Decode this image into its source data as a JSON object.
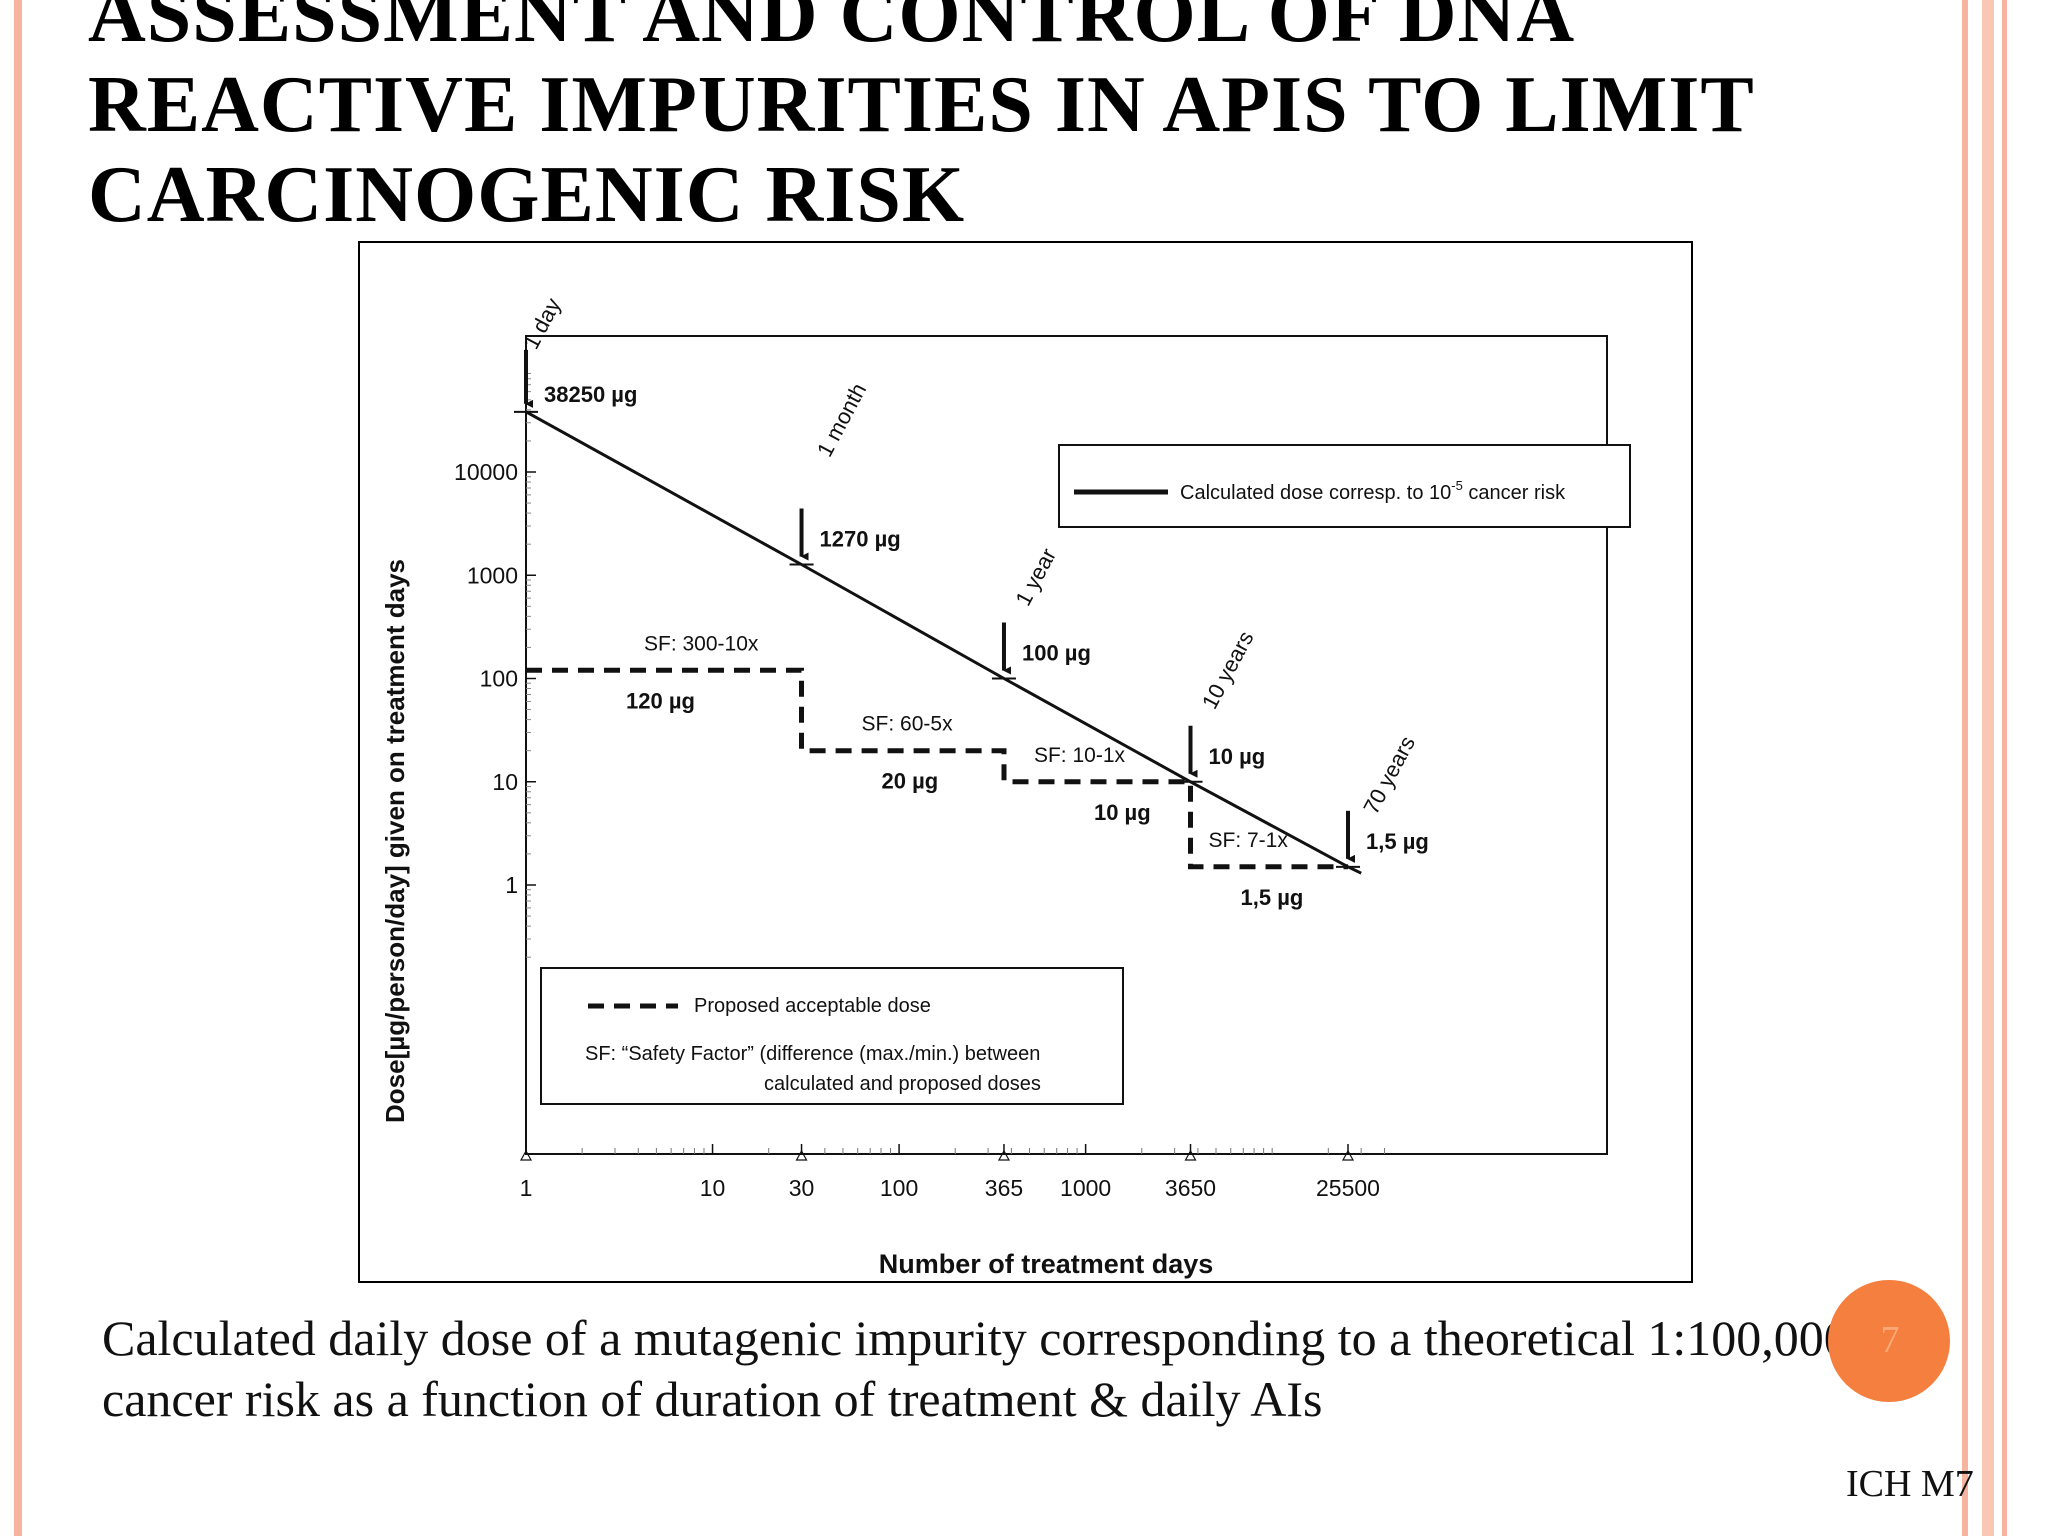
{
  "slide": {
    "title": "ASSESSMENT AND CONTROL OF DNA REACTIVE IMPURITIES IN APIS TO LIMIT CARCINOGENIC RISK",
    "caption": "Calculated daily dose of a mutagenic impurity corresponding to a theoretical 1:100,000 cancer risk as a function of duration of treatment & daily AIs",
    "page_number": "7",
    "source": "ICH M7",
    "colors": {
      "stripe": "#f6b39f",
      "badge": "#f47f3f"
    }
  },
  "chart_data": {
    "type": "line",
    "xscale": "log",
    "yscale": "log",
    "xlabel": "Number of treatment days",
    "ylabel": "Dose[µg/person/day]  given on treatment days",
    "xlim": [
      1,
      50000
    ],
    "ylim": [
      0.1,
      100000
    ],
    "x_ticks": [
      {
        "value": 1,
        "label": "1"
      },
      {
        "value": 10,
        "label": "10"
      },
      {
        "value": 30,
        "label": "30"
      },
      {
        "value": 100,
        "label": "100"
      },
      {
        "value": 365,
        "label": "365"
      },
      {
        "value": 1000,
        "label": "1000"
      },
      {
        "value": 3650,
        "label": "3650"
      },
      {
        "value": 25500,
        "label": "25500"
      }
    ],
    "y_ticks": [
      {
        "value": 1,
        "label": "1"
      },
      {
        "value": 10,
        "label": "10"
      },
      {
        "value": 100,
        "label": "100"
      },
      {
        "value": 1000,
        "label": "1000"
      },
      {
        "value": 10000,
        "label": "10000"
      }
    ],
    "series": [
      {
        "name": "Calculated dose corresp. to 10-5 cancer risk",
        "style": "solid",
        "points": [
          {
            "x": 1,
            "y": 38250
          },
          {
            "x": 30,
            "y": 1270
          },
          {
            "x": 365,
            "y": 100
          },
          {
            "x": 3650,
            "y": 10
          },
          {
            "x": 25500,
            "y": 1.5
          },
          {
            "x": 30000,
            "y": 1.3
          }
        ]
      },
      {
        "name": "Proposed acceptable dose",
        "style": "dashed",
        "steps": [
          {
            "x0": 1,
            "x1": 30,
            "y": 120
          },
          {
            "x0": 30,
            "x1": 365,
            "y": 20
          },
          {
            "x0": 365,
            "x1": 3650,
            "y": 10
          },
          {
            "x0": 3650,
            "x1": 25500,
            "y": 1.5
          }
        ]
      }
    ],
    "duration_markers": [
      {
        "x": 1,
        "y": 38250,
        "label": "1 day",
        "dose": "38250 µg"
      },
      {
        "x": 30,
        "y": 1270,
        "label": "1 month",
        "dose": "1270 µg"
      },
      {
        "x": 365,
        "y": 100,
        "label": "1 year",
        "dose": "100 µg"
      },
      {
        "x": 3650,
        "y": 10,
        "label": "10 years",
        "dose": "10 µg"
      },
      {
        "x": 25500,
        "y": 1.5,
        "label": "70 years",
        "dose": "1,5 µg"
      }
    ],
    "step_annotations": [
      {
        "sf": "SF: 300-10x",
        "dose": "120 µg"
      },
      {
        "sf": "SF: 60-5x",
        "dose": "20 µg"
      },
      {
        "sf": "SF: 10-1x",
        "dose": "10 µg"
      },
      {
        "sf": "SF: 7-1x",
        "dose": "1,5 µg"
      }
    ],
    "legend_top": {
      "label": "Calculated dose corresp. to 10",
      "sup": "-5",
      "label_after": " cancer risk",
      "placement": "top-right"
    },
    "legend_bottom": {
      "label": "Proposed acceptable dose",
      "note_line1": "SF: “Safety Factor” (difference (max./min.) between",
      "note_line2": "calculated and proposed doses",
      "placement": "bottom-left"
    }
  }
}
